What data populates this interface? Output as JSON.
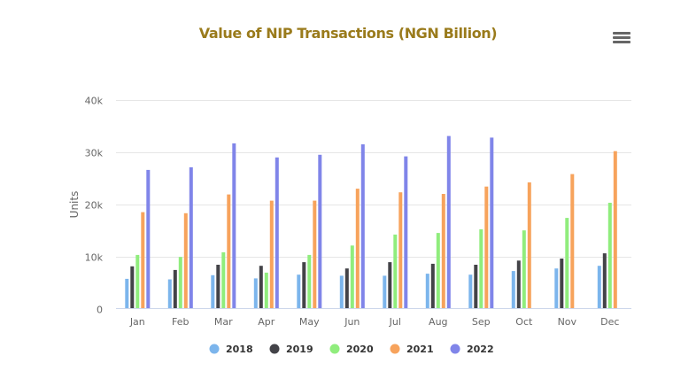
{
  "chart_data": {
    "type": "bar",
    "orientation": "vertical",
    "title": "Value of NIP Transactions (NGN Billion)",
    "xlabel": "",
    "ylabel": "Units",
    "ylim": [
      0,
      40000
    ],
    "yticks": [
      0,
      10000,
      20000,
      30000,
      40000
    ],
    "ytick_labels": [
      "0",
      "10k",
      "20k",
      "30k",
      "40k"
    ],
    "grid": true,
    "legend_position": "bottom",
    "categories": [
      "Jan",
      "Feb",
      "Mar",
      "Apr",
      "May",
      "Jun",
      "Jul",
      "Aug",
      "Sep",
      "Oct",
      "Nov",
      "Dec"
    ],
    "series": [
      {
        "name": "2018",
        "color": "#7cb5ec",
        "values": [
          5700,
          5600,
          6400,
          5800,
          6500,
          6300,
          6300,
          6700,
          6500,
          7200,
          7700,
          8200
        ]
      },
      {
        "name": "2019",
        "color": "#434348",
        "values": [
          8100,
          7400,
          8400,
          8200,
          8900,
          7700,
          8900,
          8600,
          8400,
          9200,
          9600,
          10600
        ]
      },
      {
        "name": "2020",
        "color": "#90ed7d",
        "values": [
          10300,
          9900,
          10800,
          6900,
          10300,
          12100,
          14200,
          14500,
          15200,
          15000,
          17400,
          20300
        ]
      },
      {
        "name": "2021",
        "color": "#f7a35c",
        "values": [
          18500,
          18300,
          21900,
          20700,
          20700,
          23000,
          22300,
          22000,
          23400,
          24200,
          25800,
          30200
        ]
      },
      {
        "name": "2022",
        "color": "#8085e9",
        "values": [
          26600,
          27100,
          31700,
          29000,
          29500,
          31500,
          29200,
          33100,
          32800,
          null,
          null,
          null
        ]
      }
    ]
  },
  "title_color": "#9a7b1c",
  "menu": {
    "icon": "hamburger-menu-icon"
  }
}
